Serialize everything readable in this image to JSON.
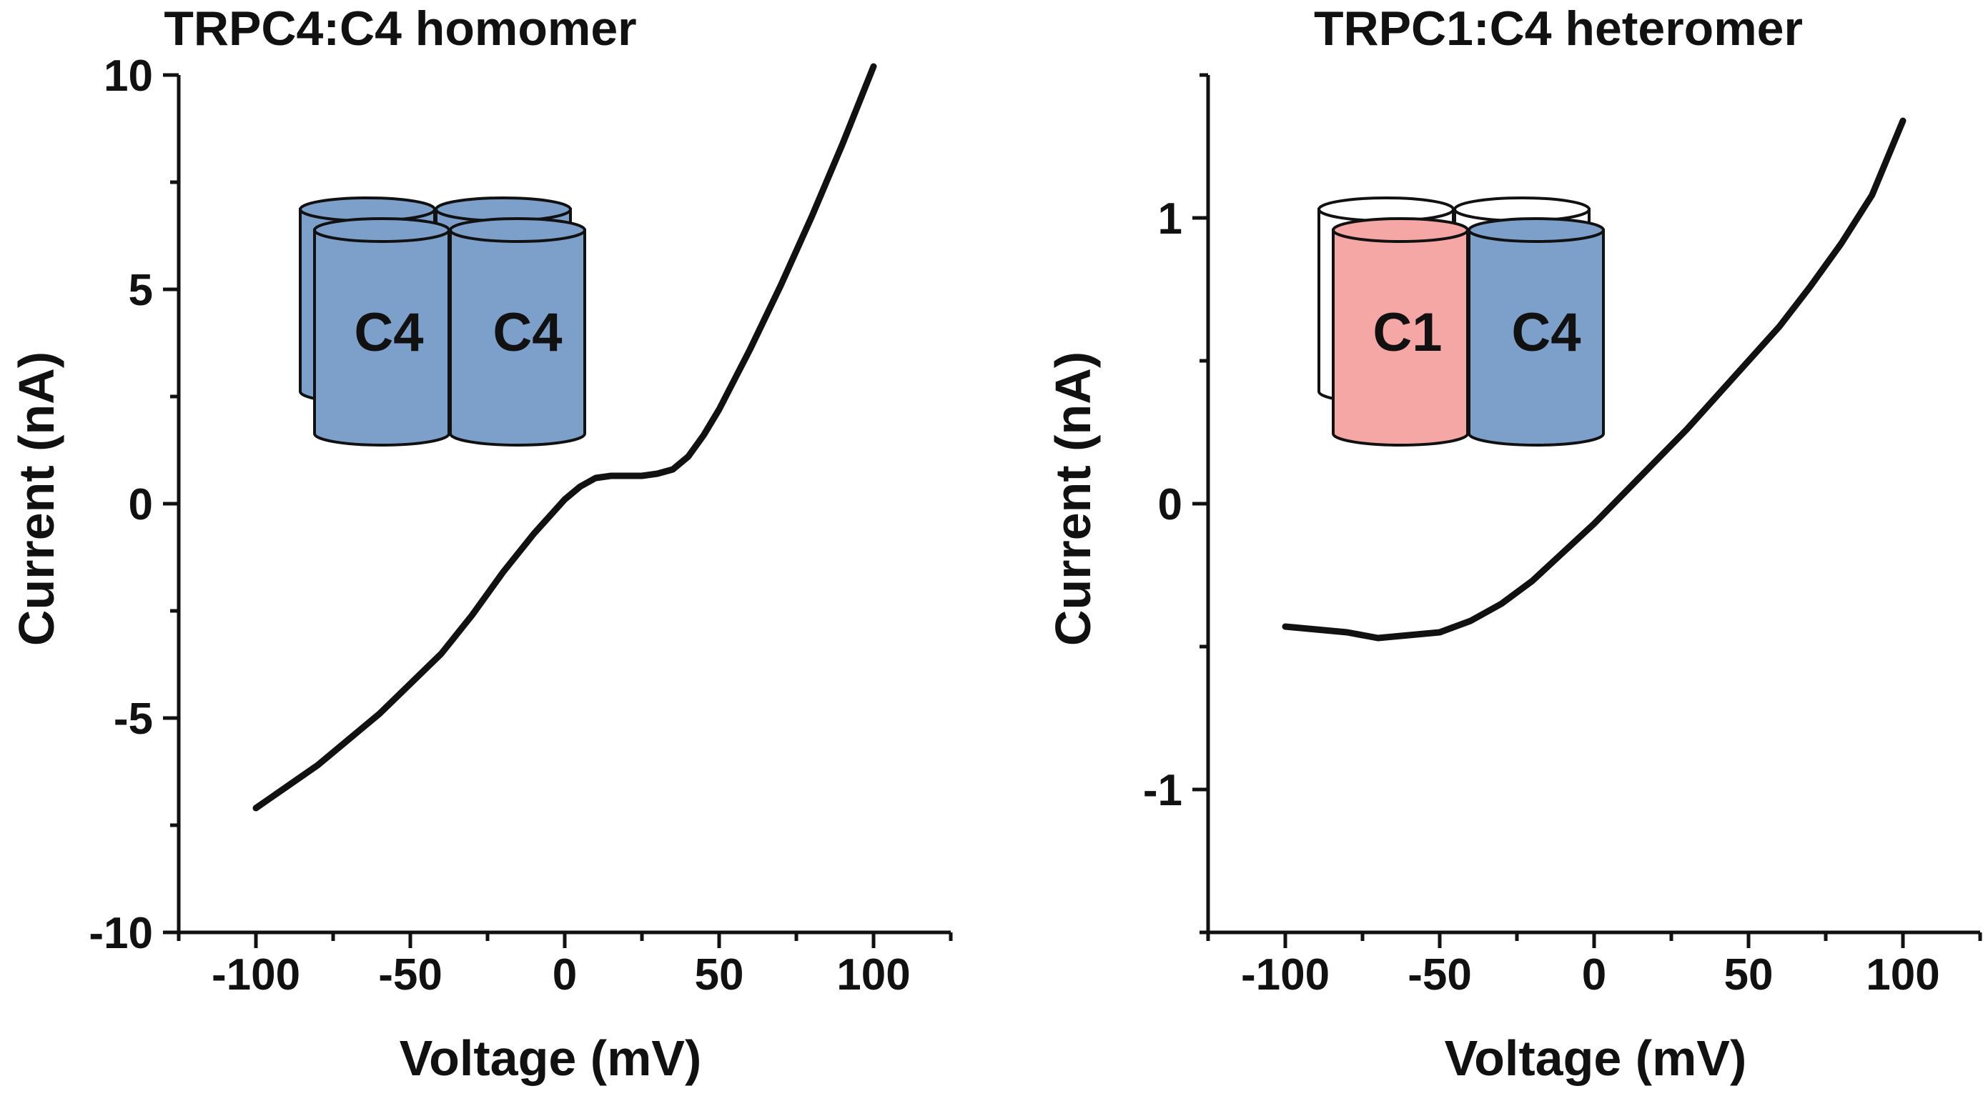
{
  "chart_data": [
    {
      "type": "line",
      "title": "TRPC4:C4 homomer",
      "xlabel": "Voltage (mV)",
      "ylabel": "Current (nA)",
      "xlim": [
        -125,
        125
      ],
      "ylim": [
        -10,
        10
      ],
      "xticks": [
        -100,
        -50,
        0,
        50,
        100
      ],
      "yticks": [
        -10,
        -5,
        0,
        5,
        10
      ],
      "xtick_labels": [
        "-100",
        "-50",
        "0",
        "50",
        "100"
      ],
      "ytick_labels": [
        "-10",
        "-5",
        "0",
        "5",
        "10"
      ],
      "series": [
        {
          "name": "TRPC4:C4 homomer",
          "x": [
            -100,
            -90,
            -80,
            -70,
            -60,
            -50,
            -40,
            -30,
            -20,
            -10,
            0,
            5,
            10,
            15,
            20,
            25,
            30,
            35,
            40,
            45,
            50,
            55,
            60,
            70,
            80,
            90,
            100
          ],
          "y": [
            -7.1,
            -6.6,
            -6.1,
            -5.5,
            -4.9,
            -4.2,
            -3.5,
            -2.6,
            -1.6,
            -0.7,
            0.1,
            0.4,
            0.6,
            0.65,
            0.65,
            0.65,
            0.7,
            0.8,
            1.1,
            1.6,
            2.2,
            2.9,
            3.6,
            5.1,
            6.7,
            8.4,
            10.2
          ]
        }
      ],
      "inset": {
        "front_left_label": "C4",
        "front_right_label": "C4",
        "back_color": "#7da0cb",
        "front_left_color": "#7da0cb",
        "front_right_color": "#7da0cb"
      }
    },
    {
      "type": "line",
      "title": "TRPC1:C4 heteromer",
      "xlabel": "Voltage (mV)",
      "ylabel": "Current (nA)",
      "xlim": [
        -125,
        125
      ],
      "ylim": [
        -1.5,
        1.5
      ],
      "xticks": [
        -100,
        -50,
        0,
        50,
        100
      ],
      "yticks": [
        -1,
        0,
        1
      ],
      "xtick_labels": [
        "-100",
        "-50",
        "0",
        "50",
        "100"
      ],
      "ytick_labels": [
        "-1",
        "0",
        "1"
      ],
      "series": [
        {
          "name": "TRPC1:C4 heteromer",
          "x": [
            -100,
            -90,
            -80,
            -70,
            -60,
            -50,
            -40,
            -30,
            -20,
            -10,
            0,
            10,
            20,
            30,
            40,
            50,
            60,
            70,
            80,
            90,
            100
          ],
          "y": [
            -0.43,
            -0.44,
            -0.45,
            -0.47,
            -0.46,
            -0.45,
            -0.41,
            -0.35,
            -0.27,
            -0.17,
            -0.07,
            0.04,
            0.15,
            0.26,
            0.38,
            0.5,
            0.62,
            0.76,
            0.91,
            1.08,
            1.34
          ]
        }
      ],
      "inset": {
        "front_left_label": "C1",
        "front_right_label": "C4",
        "back_color": "#ffffff",
        "front_left_color": "#f5a7a6",
        "front_right_color": "#7da0cb"
      }
    }
  ]
}
